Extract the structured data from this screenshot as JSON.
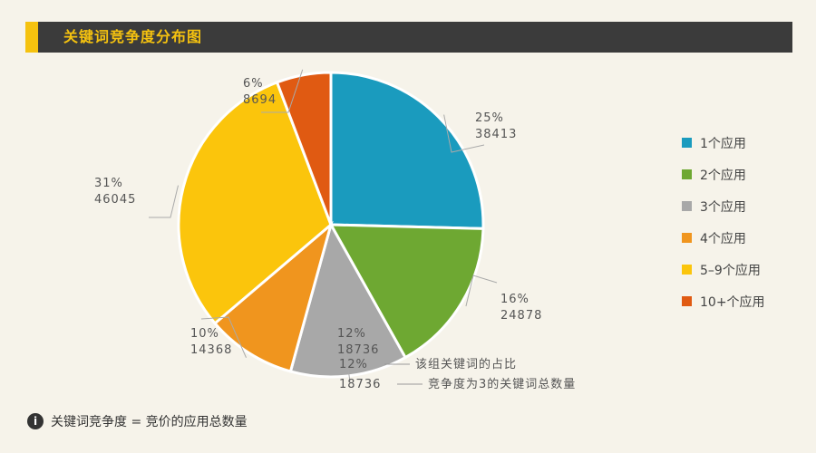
{
  "header": {
    "title": "关键词竞争度分布图"
  },
  "chart_data": {
    "type": "pie",
    "title": "关键词竞争度分布图",
    "slices": [
      {
        "name": "1个应用",
        "percent": "25%",
        "count": "38413",
        "value": 38413,
        "color": "#1a9bbe"
      },
      {
        "name": "2个应用",
        "percent": "16%",
        "count": "24878",
        "value": 24878,
        "color": "#6ea832"
      },
      {
        "name": "3个应用",
        "percent": "12%",
        "count": "18736",
        "value": 18736,
        "color": "#a8a8a8"
      },
      {
        "name": "4个应用",
        "percent": "10%",
        "count": "14368",
        "value": 14368,
        "color": "#f0951e"
      },
      {
        "name": "5–9个应用",
        "percent": "31%",
        "count": "46045",
        "value": 46045,
        "color": "#fbc50c"
      },
      {
        "name": "10+个应用",
        "percent": "6%",
        "count": "8694",
        "value": 8694,
        "color": "#e05a12"
      }
    ],
    "legend_position": "right",
    "annotation": {
      "percent_example": "12%",
      "percent_desc": "该组关键词的占比",
      "count_example": "18736",
      "count_desc": "竞争度为3的关键词总数量"
    }
  },
  "footnote": {
    "text": "关键词竞争度 = 竞价的应用总数量"
  }
}
